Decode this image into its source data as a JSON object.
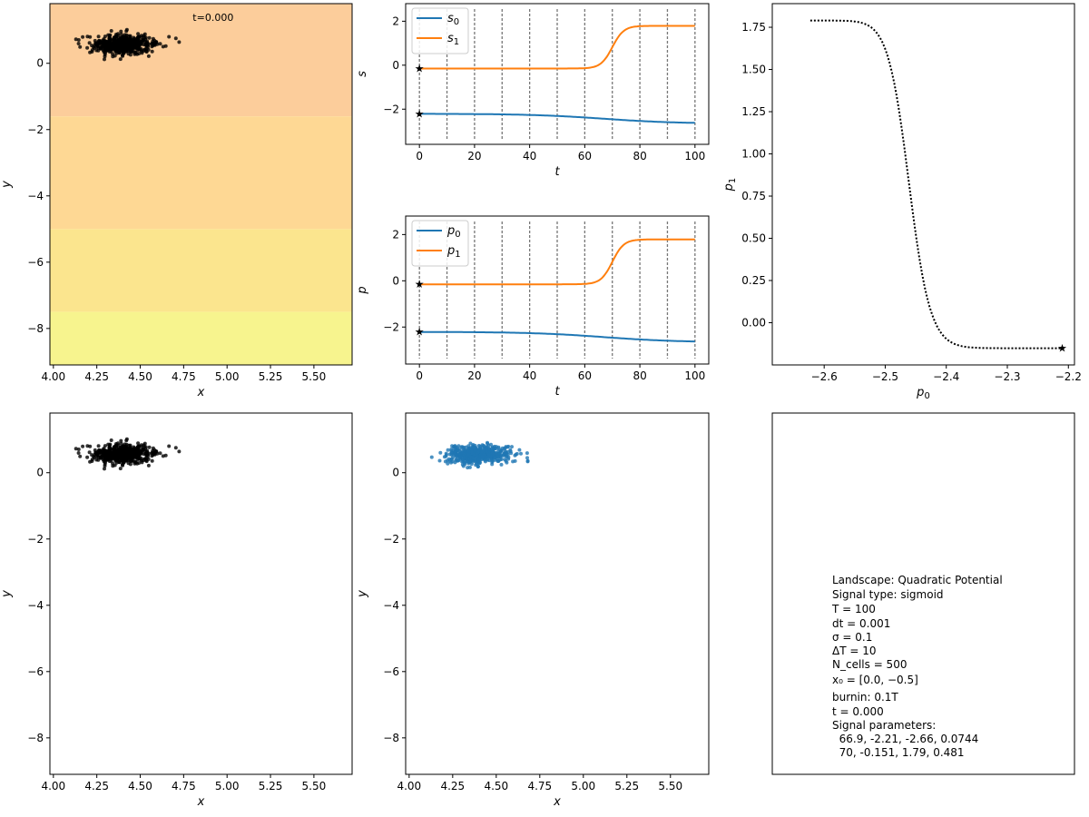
{
  "chart_data": [
    {
      "id": "landscape",
      "type": "scatter",
      "title": "t=0.000",
      "xlabel": "x",
      "ylabel": "y",
      "xlim": [
        3.98,
        5.72
      ],
      "ylim": [
        -9.1,
        1.8
      ],
      "xticks": [
        "4.00",
        "4.25",
        "4.50",
        "4.75",
        "5.00",
        "5.25",
        "5.50"
      ],
      "yticks": [
        "0",
        "−2",
        "−4",
        "−6",
        "−8"
      ],
      "background_bands": [
        {
          "y_from": -1.6,
          "y_to": 1.8,
          "color": "#fccd9b"
        },
        {
          "y_from": -5.0,
          "y_to": -1.6,
          "color": "#fed894"
        },
        {
          "y_from": -7.5,
          "y_to": -5.0,
          "color": "#fbe58e"
        },
        {
          "y_from": -9.1,
          "y_to": -7.5,
          "color": "#f7f48e"
        }
      ],
      "cells": {
        "n": 500,
        "center": [
          4.4,
          0.55
        ],
        "spread": [
          0.09,
          0.14
        ],
        "color": "#000000"
      }
    },
    {
      "id": "signals",
      "type": "line",
      "xlabel": "t",
      "ylabel": "s",
      "xlim": [
        -5,
        105
      ],
      "ylim": [
        -3.6,
        2.8
      ],
      "xticks": [
        "0",
        "20",
        "40",
        "60",
        "80",
        "100"
      ],
      "yticks": [
        "2",
        "0",
        "−2"
      ],
      "legend": "top-left",
      "vlines": [
        0,
        10,
        20,
        30,
        40,
        50,
        60,
        70,
        80,
        90,
        100
      ],
      "series": [
        {
          "name": "s",
          "sub": "0",
          "color": "#1f77b4",
          "t0": 66.9,
          "start": -2.21,
          "end": -2.66,
          "rate": 0.0744
        },
        {
          "name": "s",
          "sub": "1",
          "color": "#ff7f0e",
          "t0": 70,
          "start": -0.151,
          "end": 1.79,
          "rate": 0.481
        }
      ]
    },
    {
      "id": "params",
      "type": "line",
      "xlabel": "t",
      "ylabel": "p",
      "xlim": [
        -5,
        105
      ],
      "ylim": [
        -3.6,
        2.8
      ],
      "xticks": [
        "0",
        "20",
        "40",
        "60",
        "80",
        "100"
      ],
      "yticks": [
        "2",
        "0",
        "−2"
      ],
      "legend": "top-left",
      "vlines": [
        0,
        10,
        20,
        30,
        40,
        50,
        60,
        70,
        80,
        90,
        100
      ],
      "series": [
        {
          "name": "p",
          "sub": "0",
          "color": "#1f77b4",
          "t0": 66.9,
          "start": -2.21,
          "end": -2.66,
          "rate": 0.0744
        },
        {
          "name": "p",
          "sub": "1",
          "color": "#ff7f0e",
          "t0": 70,
          "start": -0.151,
          "end": 1.79,
          "rate": 0.481
        }
      ]
    },
    {
      "id": "phase",
      "type": "line",
      "xlabel": "p",
      "xlabel_sub": "0",
      "ylabel": "p",
      "ylabel_sub": "1",
      "xlim": [
        -2.685,
        -2.19
      ],
      "ylim": [
        -0.25,
        1.89
      ],
      "xticks": [
        "−2.6",
        "−2.5",
        "−2.4",
        "−2.3",
        "−2.2"
      ],
      "yticks": [
        "1.75",
        "1.50",
        "1.25",
        "1.00",
        "0.75",
        "0.50",
        "0.25",
        "0.00"
      ],
      "marker": [
        -2.21,
        -0.151
      ]
    },
    {
      "id": "cells_black",
      "type": "scatter",
      "xlabel": "x",
      "ylabel": "y",
      "xlim": [
        3.98,
        5.72
      ],
      "ylim": [
        -9.1,
        1.8
      ],
      "xticks": [
        "4.00",
        "4.25",
        "4.50",
        "4.75",
        "5.00",
        "5.25",
        "5.50"
      ],
      "yticks": [
        "0",
        "−2",
        "−4",
        "−6",
        "−8"
      ],
      "cells": {
        "n": 500,
        "center": [
          4.4,
          0.55
        ],
        "spread": [
          0.09,
          0.14
        ],
        "color": "#000000"
      }
    },
    {
      "id": "cells_blue",
      "type": "scatter",
      "xlabel": "x",
      "ylabel": "y",
      "xlim": [
        3.98,
        5.72
      ],
      "ylim": [
        -9.1,
        1.8
      ],
      "xticks": [
        "4.00",
        "4.25",
        "4.50",
        "4.75",
        "5.00",
        "5.25",
        "5.50"
      ],
      "yticks": [
        "0",
        "−2",
        "−4",
        "−6",
        "−8"
      ],
      "cells": {
        "n": 500,
        "center": [
          4.4,
          0.55
        ],
        "spread": [
          0.09,
          0.14
        ],
        "color": "#1f77b4"
      }
    }
  ],
  "info_lines": [
    "Landscape: Quadratic Potential",
    "Signal type: sigmoid",
    "T = 100",
    "dt = 0.001",
    "σ = 0.1",
    "ΔT = 10",
    "N_cells = 500",
    "x₀ = [0.0, −0.5]",
    "burnin: 0.1T",
    "t = 0.000",
    "Signal parameters:",
    "  66.9, -2.21, -2.66, 0.0744",
    "  70, -0.151, 1.79, 0.481"
  ]
}
